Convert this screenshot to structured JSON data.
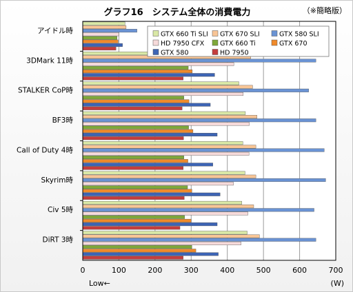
{
  "title": "グラフ16　システム全体の消費電力",
  "note": "（※簡略版）",
  "chart_data": {
    "type": "bar",
    "orientation": "horizontal",
    "categories": [
      "アイドル時",
      "3DMark 11時",
      "STALKER  CoP時",
      "BF3時",
      "Call of Duty 4時",
      "Skyrim時",
      "Civ 5時",
      "DiRT 3時"
    ],
    "series": [
      {
        "name": "GTX 660 Ti SLI",
        "color": "#d9e8a6",
        "values": [
          117,
          462,
          432,
          450,
          443,
          449,
          440,
          455
        ]
      },
      {
        "name": "GTX 670 SLI",
        "color": "#f8c596",
        "values": [
          120,
          465,
          470,
          482,
          479,
          479,
          473,
          489
        ]
      },
      {
        "name": "GTX 580 SLI",
        "color": "#6a93d4",
        "values": [
          150,
          645,
          625,
          645,
          668,
          672,
          640,
          645
        ]
      },
      {
        "name": "HD 7950 CFX",
        "color": "#f6dada",
        "values": [
          100,
          418,
          444,
          461,
          460,
          417,
          457,
          438
        ]
      },
      {
        "name": "GTX 660 Ti",
        "color": "#7fa83a",
        "values": [
          95,
          292,
          280,
          293,
          280,
          290,
          282,
          302
        ]
      },
      {
        "name": "GTX 670",
        "color": "#f08a2a",
        "values": [
          98,
          303,
          294,
          305,
          291,
          302,
          300,
          313
        ]
      },
      {
        "name": "GTX 580",
        "color": "#3d64b4",
        "values": [
          110,
          365,
          353,
          372,
          360,
          380,
          372,
          375
        ]
      },
      {
        "name": "HD 7950",
        "color": "#c43d3d",
        "values": [
          92,
          278,
          275,
          279,
          278,
          281,
          269,
          278
        ]
      }
    ],
    "xlim": [
      0,
      700
    ],
    "xticks": [
      0,
      100,
      200,
      300,
      400,
      500,
      600,
      700
    ],
    "unit": "(W)",
    "xnote": "Low←",
    "grid": true,
    "legend_position": "top-right"
  }
}
